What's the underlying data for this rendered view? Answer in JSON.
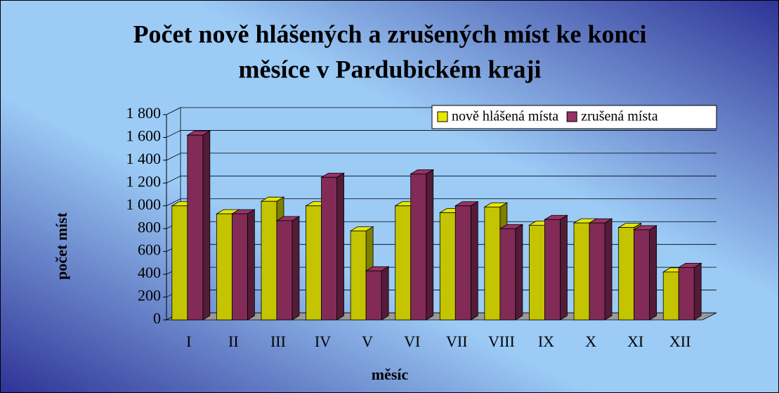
{
  "chart_data": {
    "type": "bar3d",
    "title": [
      "Počet nově hlášených a zrušených míst ke konci",
      "měsíce v Pardubickém kraji"
    ],
    "x_label": "měsíc",
    "y_label": "počet míst",
    "categories": [
      "I",
      "II",
      "III",
      "IV",
      "V",
      "VI",
      "VII",
      "VIII",
      "IX",
      "X",
      "XI",
      "XII"
    ],
    "series": [
      {
        "name": "nově hlášená místa",
        "color": "#e6e600",
        "values": [
          1000,
          930,
          1040,
          1000,
          780,
          1000,
          940,
          990,
          830,
          850,
          810,
          420
        ]
      },
      {
        "name": "zrušená místa",
        "color": "#993366",
        "values": [
          1620,
          930,
          870,
          1250,
          430,
          1280,
          1000,
          800,
          880,
          850,
          790,
          460
        ]
      }
    ],
    "ylim": [
      0,
      1800
    ],
    "yticks": [
      0,
      {
        "value": 200,
        "label": "200"
      },
      {
        "value": 400,
        "label": "400"
      },
      {
        "value": 600,
        "label": "600"
      },
      {
        "value": 800,
        "label": "800"
      },
      {
        "value": 1000,
        "label": "1 000"
      },
      {
        "value": 1200,
        "label": "1 200"
      },
      {
        "value": 1400,
        "label": "1 400"
      },
      {
        "value": 1600,
        "label": "1 600"
      },
      {
        "value": 1800,
        "label": "1 800"
      }
    ],
    "grid": true,
    "legend": "top-right"
  }
}
